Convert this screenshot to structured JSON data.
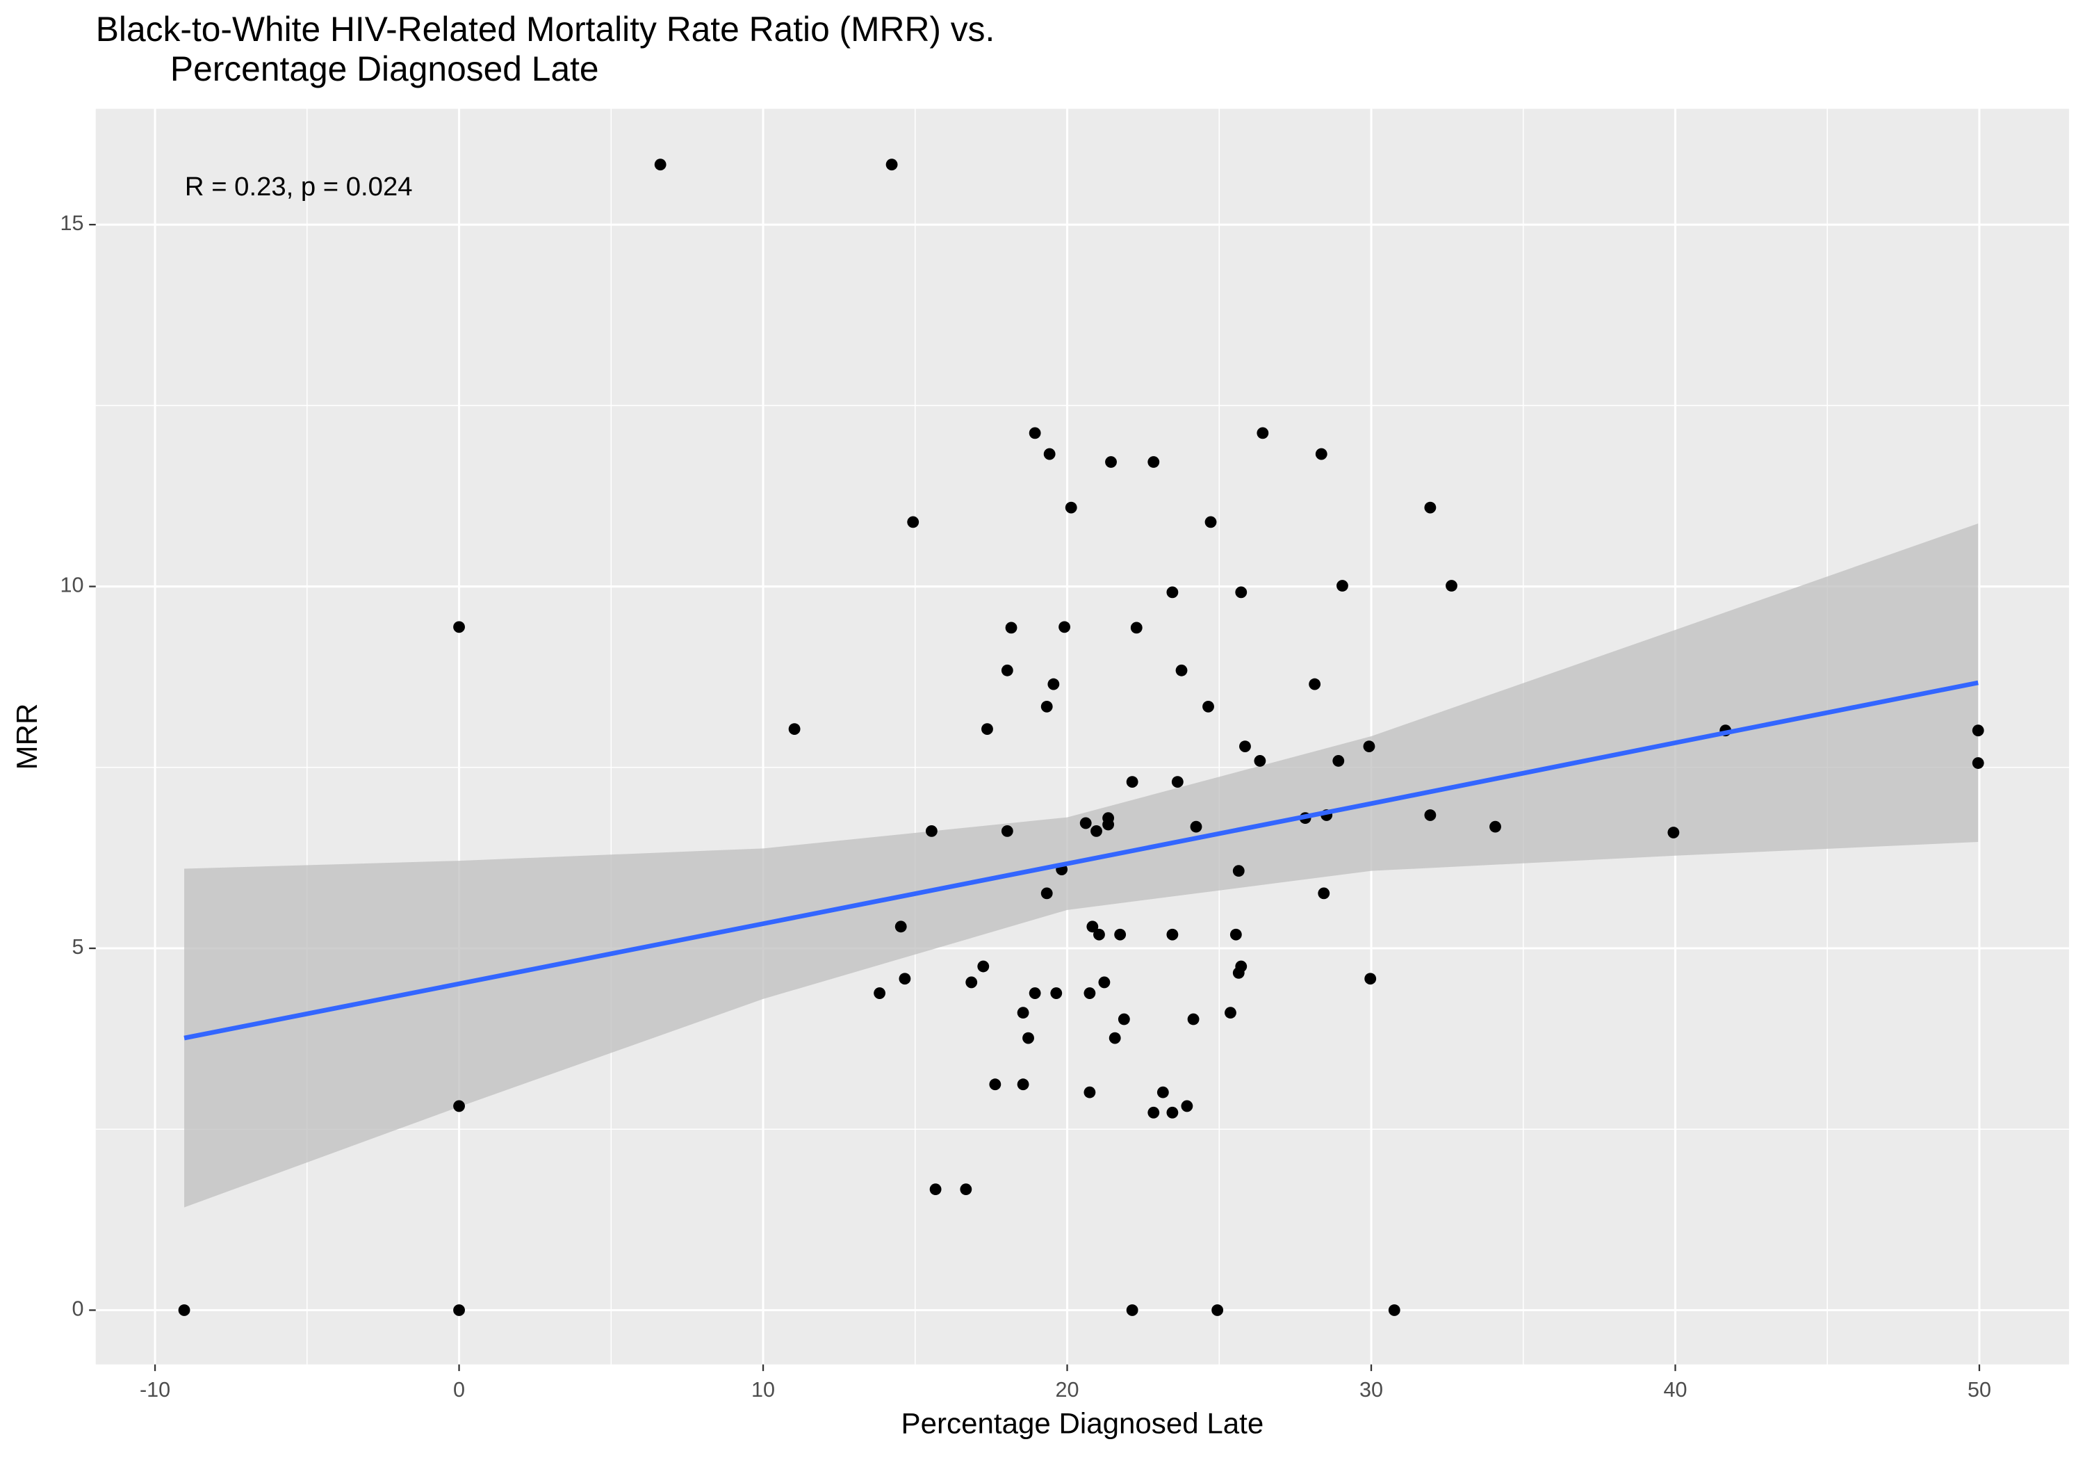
{
  "chart_data": {
    "type": "scatter",
    "title": [
      "Black-to-White HIV-Related Mortality Rate Ratio (MRR) vs.",
      "Percentage Diagnosed Late"
    ],
    "x_label": "Percentage Diagnosed Late",
    "y_label": "MRR",
    "annotation": "R = 0.23, p = 0.024",
    "xlim": [
      -11.95,
      52.95
    ],
    "ylim": [
      -0.75,
      16.6
    ],
    "xticks": [
      -10,
      0,
      10,
      20,
      30,
      40,
      50
    ],
    "yticks": [
      0,
      5,
      10,
      15
    ],
    "grid": true,
    "color": "#000000",
    "x": [
      -9.04,
      0,
      0,
      0,
      6.62,
      14.23,
      11.03,
      14.93,
      13.83,
      14.53,
      14.66,
      15.54,
      15.67,
      16.67,
      16.85,
      17.24,
      17.37,
      17.63,
      18.03,
      18.03,
      18.16,
      18.55,
      18.55,
      18.72,
      18.94,
      18.94,
      19.33,
      19.33,
      19.42,
      19.55,
      19.64,
      19.82,
      19.91,
      20.13,
      20.61,
      20.74,
      20.74,
      20.83,
      20.96,
      21.05,
      21.22,
      21.35,
      21.35,
      21.44,
      21.57,
      21.74,
      21.87,
      22.14,
      22.14,
      22.28,
      22.84,
      22.84,
      23.15,
      23.46,
      23.46,
      23.46,
      23.63,
      23.76,
      23.94,
      24.15,
      24.24,
      24.64,
      24.72,
      24.94,
      25.37,
      25.55,
      25.64,
      25.64,
      25.72,
      25.72,
      25.85,
      26.34,
      26.43,
      27.83,
      28.14,
      28.36,
      28.44,
      28.53,
      28.92,
      29.05,
      29.93,
      29.97,
      30.76,
      31.94,
      31.94,
      32.64,
      34.08,
      39.94,
      41.65,
      49.96,
      49.96
    ],
    "values": [
      0,
      0,
      2.82,
      9.44,
      15.83,
      15.83,
      8.03,
      10.89,
      4.38,
      5.3,
      4.58,
      6.62,
      1.67,
      1.67,
      4.53,
      4.75,
      8.03,
      3.12,
      8.84,
      6.62,
      9.43,
      4.11,
      3.12,
      3.76,
      12.12,
      4.38,
      5.76,
      8.34,
      11.83,
      8.65,
      4.38,
      6.09,
      9.44,
      11.09,
      6.73,
      4.38,
      3.01,
      5.3,
      6.62,
      5.19,
      4.53,
      6.8,
      6.71,
      11.72,
      3.76,
      5.19,
      4.02,
      0,
      7.3,
      9.43,
      2.73,
      11.72,
      3.01,
      2.73,
      5.19,
      9.92,
      7.3,
      8.84,
      2.82,
      4.02,
      6.68,
      8.34,
      10.89,
      0,
      4.11,
      5.19,
      6.07,
      4.66,
      4.75,
      9.92,
      7.79,
      7.59,
      12.12,
      6.8,
      8.65,
      11.83,
      5.76,
      6.84,
      7.59,
      10.01,
      7.79,
      4.58,
      0,
      11.09,
      6.84,
      10.01,
      6.68,
      6.6,
      8.01,
      8.01,
      7.56
    ],
    "fit": {
      "color": "#3366ff",
      "band_color": "#bfbfbf",
      "x": [
        -9.04,
        0,
        10,
        20,
        30,
        40,
        49.96
      ],
      "values": [
        3.76,
        4.51,
        5.34,
        6.17,
        7.0,
        7.84,
        8.67
      ],
      "ymin": [
        1.42,
        2.81,
        4.3,
        5.53,
        6.07,
        6.28,
        6.47
      ],
      "ymax": [
        6.1,
        6.21,
        6.38,
        6.81,
        7.93,
        9.4,
        10.87
      ]
    }
  }
}
